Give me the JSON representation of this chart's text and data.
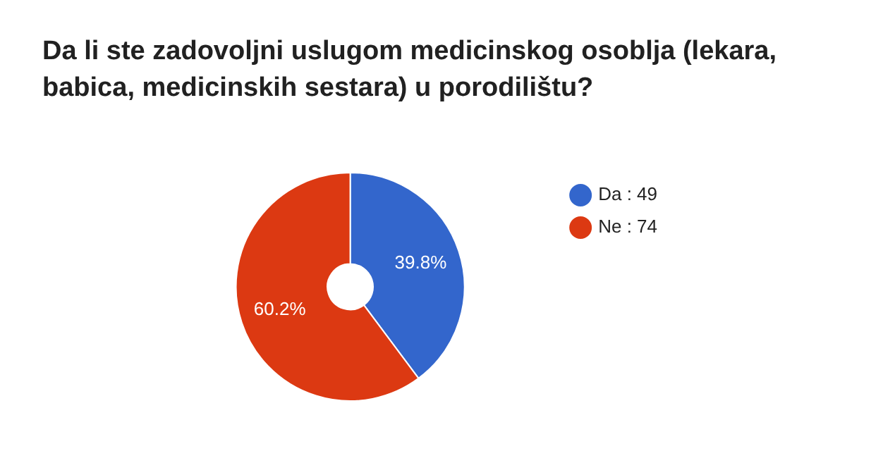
{
  "chart_data": {
    "type": "donut",
    "title": "Da li ste zadovoljni uslugom medicinskog osoblja (lekara, babica, medicinskih sestara) u porodilištu?",
    "categories": [
      "Da : 49",
      "Ne : 74"
    ],
    "values": [
      39.8,
      60.2
    ],
    "colors": [
      "#3366cc",
      "#dc3912"
    ],
    "value_labels": [
      "39.8%",
      "60.2%"
    ],
    "legend": "right"
  }
}
